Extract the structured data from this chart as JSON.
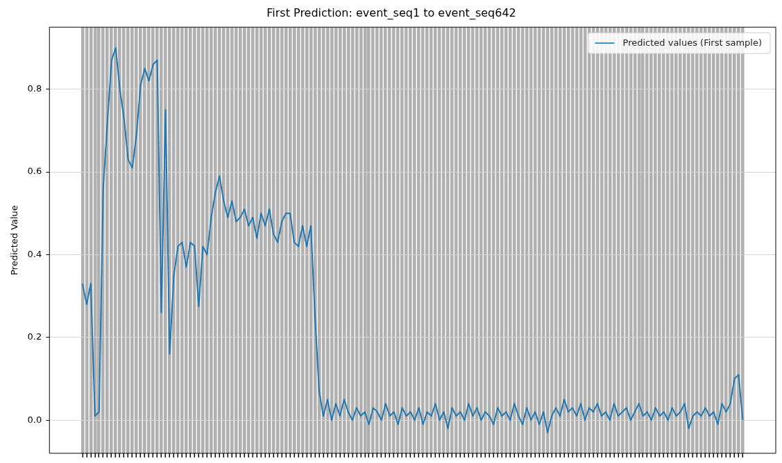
{
  "chart_data": {
    "type": "line",
    "title": "First Prediction: event_seq1 to event_seq642",
    "ylabel": "Predicted Value",
    "categories": [
      null,
      null,
      null,
      null,
      null,
      null,
      null,
      null,
      null,
      null,
      null,
      null,
      null,
      null,
      null,
      null,
      null,
      null,
      null,
      null,
      null,
      null,
      null,
      null,
      null,
      null,
      null,
      null,
      null,
      null,
      null,
      null,
      null,
      null,
      null,
      null,
      null,
      null,
      null,
      null,
      null,
      null,
      null,
      null,
      null,
      null,
      null,
      null,
      null,
      null,
      null,
      null,
      null,
      null,
      null,
      null,
      null,
      null,
      null,
      null,
      null,
      null,
      null,
      null,
      null,
      null,
      null,
      null,
      null,
      null,
      null,
      null,
      null,
      null,
      null,
      null,
      null,
      null,
      null,
      null,
      null,
      null,
      null,
      null,
      null,
      null,
      null,
      null,
      null,
      null,
      null,
      null,
      null,
      null,
      null,
      null,
      null,
      null,
      null,
      null,
      null,
      null,
      null,
      null,
      null,
      null,
      null,
      null,
      null,
      null,
      null,
      null,
      null,
      null,
      null,
      null,
      null,
      null,
      null,
      null,
      null,
      null,
      null,
      null,
      null,
      null,
      null,
      null,
      null,
      null,
      null,
      null,
      null,
      null,
      null,
      null,
      null,
      null,
      null,
      null,
      null,
      null,
      null,
      null,
      null,
      null,
      null,
      null,
      null,
      null,
      null,
      null,
      null,
      null,
      null,
      null,
      null,
      null,
      null,
      null
    ],
    "series": [
      {
        "name": "Predicted values (First sample)",
        "color": "#1f77b4",
        "values": [
          0.33,
          0.28,
          0.33,
          0.01,
          0.02,
          0.56,
          0.72,
          0.87,
          0.9,
          0.8,
          0.73,
          0.63,
          0.61,
          0.69,
          0.81,
          0.85,
          0.82,
          0.86,
          0.87,
          0.26,
          0.75,
          0.16,
          0.35,
          0.42,
          0.43,
          0.37,
          0.43,
          0.42,
          0.275,
          0.42,
          0.4,
          0.49,
          0.55,
          0.59,
          0.53,
          0.49,
          0.53,
          0.48,
          0.49,
          0.51,
          0.47,
          0.49,
          0.44,
          0.5,
          0.47,
          0.51,
          0.45,
          0.43,
          0.48,
          0.5,
          0.5,
          0.43,
          0.42,
          0.47,
          0.42,
          0.47,
          0.25,
          0.07,
          0.01,
          0.05,
          0.0,
          0.04,
          0.01,
          0.05,
          0.02,
          0.0,
          0.03,
          0.01,
          0.02,
          -0.01,
          0.03,
          0.02,
          0.0,
          0.04,
          0.01,
          0.02,
          -0.01,
          0.03,
          0.01,
          0.02,
          0.0,
          0.03,
          -0.01,
          0.02,
          0.01,
          0.04,
          0.0,
          0.02,
          -0.02,
          0.03,
          0.01,
          0.02,
          0.0,
          0.04,
          0.01,
          0.03,
          0.0,
          0.02,
          0.01,
          -0.01,
          0.03,
          0.01,
          0.02,
          0.0,
          0.04,
          0.01,
          -0.01,
          0.03,
          0.0,
          0.02,
          -0.01,
          0.02,
          -0.03,
          0.01,
          0.03,
          0.01,
          0.05,
          0.02,
          0.03,
          0.01,
          0.04,
          0.0,
          0.03,
          0.02,
          0.04,
          0.01,
          0.02,
          0.0,
          0.04,
          0.01,
          0.02,
          0.03,
          0.0,
          0.02,
          0.04,
          0.01,
          0.02,
          0.0,
          0.03,
          0.01,
          0.02,
          0.0,
          0.03,
          0.01,
          0.02,
          0.04,
          -0.02,
          0.01,
          0.02,
          0.01,
          0.03,
          0.01,
          0.02,
          -0.01,
          0.04,
          0.02,
          0.04,
          0.1,
          0.11,
          0.0
        ]
      }
    ],
    "ylim": [
      -0.08,
      0.95
    ],
    "yticks": [
      {
        "value": 0,
        "label": "0.0"
      },
      0.2,
      0.4,
      0.6,
      0.8
    ],
    "grid": true,
    "legend": "top right",
    "tick_labels": "y"
  }
}
